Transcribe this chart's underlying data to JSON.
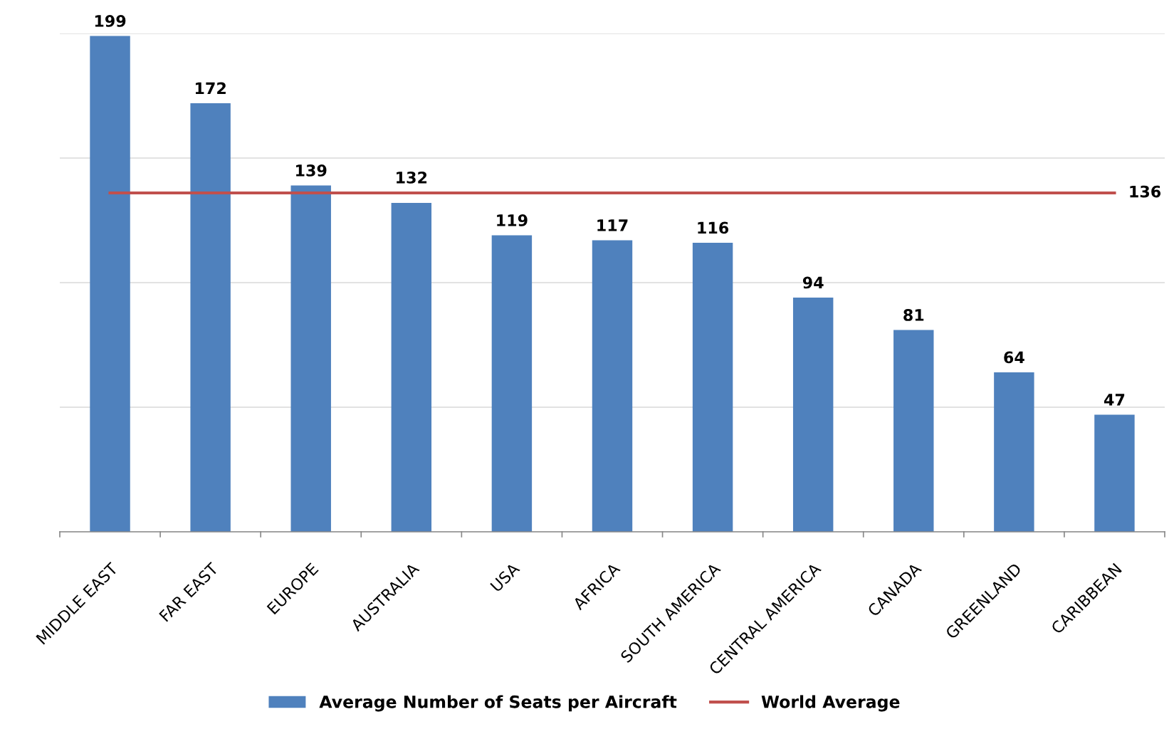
{
  "chart_data": {
    "type": "bar",
    "categories": [
      "MIDDLE EAST",
      "FAR EAST",
      "EUROPE",
      "AUSTRALIA",
      "USA",
      "AFRICA",
      "SOUTH AMERICA",
      "CENTRAL AMERICA",
      "CANADA",
      "GREENLAND",
      "CARIBBEAN"
    ],
    "series": [
      {
        "name": "Average Number of Seats per Aircraft",
        "color": "#4f81bd",
        "values": [
          199,
          172,
          139,
          132,
          119,
          117,
          116,
          94,
          81,
          64,
          47
        ]
      },
      {
        "name": "World Average",
        "type": "line",
        "color": "#c0504d",
        "values": [
          136,
          136,
          136,
          136,
          136,
          136,
          136,
          136,
          136,
          136,
          136
        ],
        "value_labels": [
          null,
          null,
          null,
          null,
          null,
          null,
          null,
          null,
          null,
          null,
          "136"
        ]
      }
    ],
    "data_labels": true,
    "ylim": [
      0,
      200
    ],
    "yticks": [
      {
        "value": 0,
        "label": null
      },
      {
        "value": 50,
        "label": null
      },
      {
        "value": 100,
        "label": null
      },
      {
        "value": 150,
        "label": null
      },
      {
        "value": 200,
        "label": null
      }
    ],
    "tick_labels": "x",
    "grid": "y",
    "legend": "bottom"
  }
}
